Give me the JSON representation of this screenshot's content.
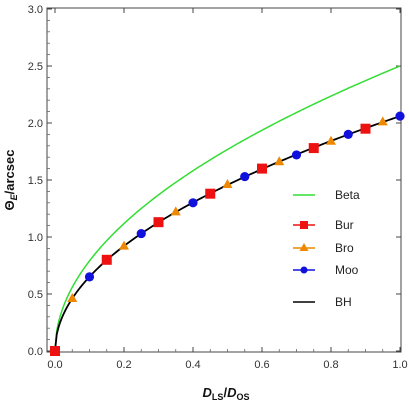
{
  "chart_data": {
    "type": "line",
    "xlabel_main": "D",
    "xlabel_main_sub": "LS",
    "xlabel_sep": "/",
    "xlabel_den": "D",
    "xlabel_den_sub": "OS",
    "ylabel_main": "Θ",
    "ylabel_sub": "E",
    "ylabel_rest": "/arcsec",
    "xlim": [
      0,
      1.0
    ],
    "ylim": [
      0,
      3.0
    ],
    "x_ticks": [
      "0.0",
      "0.2",
      "0.4",
      "0.6",
      "0.8",
      "1.0"
    ],
    "y_ticks": [
      "0.0",
      "0.5",
      "1.0",
      "1.5",
      "2.0",
      "2.5",
      "3.0"
    ],
    "x_tick_values": [
      0,
      0.2,
      0.4,
      0.6,
      0.8,
      1.0
    ],
    "y_tick_values": [
      0,
      0.5,
      1.0,
      1.5,
      2.0,
      2.5,
      3.0
    ],
    "grid": false,
    "legend_position": "right",
    "series": [
      {
        "name": "Beta",
        "color": "#33dd33",
        "marker": "none",
        "curve": {
          "form": "a*sqrt(x)",
          "a": 2.5
        },
        "x": [
          0,
          0.05,
          0.1,
          0.2,
          0.3,
          0.4,
          0.5,
          0.6,
          0.7,
          0.8,
          0.9,
          1.0
        ],
        "y": [
          0,
          0.56,
          0.79,
          1.12,
          1.37,
          1.58,
          1.77,
          1.94,
          2.09,
          2.24,
          2.37,
          2.5
        ]
      },
      {
        "name": "Bur",
        "color": "#ee1111",
        "marker": "square",
        "x": [
          0.0,
          0.15,
          0.3,
          0.45,
          0.6,
          0.75,
          0.9
        ],
        "y": [
          0.0,
          0.8,
          1.13,
          1.38,
          1.6,
          1.78,
          1.95
        ]
      },
      {
        "name": "Bro",
        "color": "#ee8800",
        "marker": "triangle",
        "x": [
          0.05,
          0.2,
          0.35,
          0.5,
          0.65,
          0.8,
          0.95
        ],
        "y": [
          0.46,
          0.92,
          1.22,
          1.46,
          1.66,
          1.84,
          2.01
        ]
      },
      {
        "name": "Moo",
        "color": "#1111dd",
        "marker": "circle",
        "x": [
          0.1,
          0.25,
          0.4,
          0.55,
          0.7,
          0.85,
          1.0
        ],
        "y": [
          0.65,
          1.03,
          1.3,
          1.53,
          1.72,
          1.9,
          2.06
        ]
      },
      {
        "name": "BH",
        "color": "#000000",
        "marker": "none",
        "curve": {
          "form": "a*sqrt(x)",
          "a": 2.06
        },
        "x": [
          0,
          0.05,
          0.1,
          0.2,
          0.3,
          0.4,
          0.5,
          0.6,
          0.7,
          0.8,
          0.9,
          1.0
        ],
        "y": [
          0,
          0.46,
          0.65,
          0.92,
          1.13,
          1.3,
          1.46,
          1.6,
          1.72,
          1.84,
          1.95,
          2.06
        ]
      }
    ]
  }
}
